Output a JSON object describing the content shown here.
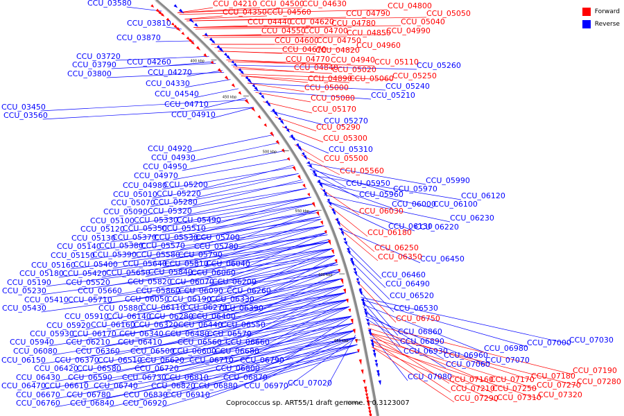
{
  "legend": {
    "forward_label": "Forward",
    "reverse_label": "Reverse",
    "forward_color": "#ff0000",
    "reverse_color": "#0000ff"
  },
  "caption": "Coprococcus sp. ART55/1 draft genome. - 0.3123007",
  "scale_ticks": [
    "400 kbp",
    "450 kbp",
    "500 kbp",
    "550 kbp",
    "600 kbp",
    "650 kbp",
    "700 kbp"
  ],
  "labels": {
    "reverse": [
      "CCU_03580",
      "CCU_03810",
      "CCU_03870",
      "CCU_03720",
      "CCU_03790",
      "CCU_03800",
      "CCU_04260",
      "CCU_04270",
      "CCU_04330",
      "CCU_04540",
      "CCU_04710",
      "CCU_03450",
      "CCU_03560",
      "CCU_04910",
      "CCU_04920",
      "CCU_04930",
      "CCU_04950",
      "CCU_04970",
      "CCU_04980",
      "CCU_05200",
      "CCU_05010",
      "CCU_05220",
      "CCU_05070",
      "CCU_05280",
      "CCU_05090",
      "CCU_05320",
      "CCU_05100",
      "CCU_05330",
      "CCU_05490",
      "CCU_05120",
      "CCU_05350",
      "CCU_05510",
      "CCU_05130",
      "CCU_05370",
      "CCU_05530",
      "CCU_05700",
      "CCU_05140",
      "CCU_05380",
      "CCU_05570",
      "CCU_05780",
      "CCU_05150",
      "CCU_05390",
      "CCU_05580",
      "CCU_05790",
      "CCU_05160",
      "CCU_05400",
      "CCU_05640",
      "CCU_05810",
      "CCU_06040",
      "CCU_05180",
      "CCU_05420",
      "CCU_05650",
      "CCU_05840",
      "CCU_06060",
      "CCU_05190",
      "CCU_05520",
      "CCU_05820",
      "CCU_06070",
      "CCU_06200",
      "CCU_05230",
      "CCU_05660",
      "CCU_05860",
      "CCU_06090",
      "CCU_06260",
      "CCU_05410",
      "CCU_05710",
      "CCU_06050",
      "CCU_06190",
      "CCU_06330",
      "CCU_05430",
      "CCU_05880",
      "CCU_06110",
      "CCU_06270",
      "CCU_06390",
      "CCU_05910",
      "CCU_06140",
      "CCU_06280",
      "CCU_06400",
      "CCU_05920",
      "CCU_06160",
      "CCU_06320",
      "CCU_06440",
      "CCU_06550",
      "CCU_05930",
      "CCU_06170",
      "CCU_06340",
      "CCU_06480",
      "CCU_06570",
      "CCU_05940",
      "CCU_06210",
      "CCU_06410",
      "CCU_06560",
      "CCU_06660",
      "CCU_06080",
      "CCU_06360",
      "CCU_06500",
      "CCU_06600",
      "CCU_06680",
      "CCU_06150",
      "CCU_06370",
      "CCU_06510",
      "CCU_06620",
      "CCU_06710",
      "CCU_06790",
      "CCU_06420",
      "CCU_06580",
      "CCU_06720",
      "CCU_06800",
      "CCU_06430",
      "CCU_06590",
      "CCU_06730",
      "CCU_06810",
      "CCU_06870",
      "CCU_06470",
      "CCU_06610",
      "CCU_06740",
      "CCU_06820",
      "CCU_06880",
      "CCU_06970",
      "CCU_07020",
      "CCU_06670",
      "CCU_06780",
      "CCU_06830",
      "CCU_06910",
      "CCU_06760",
      "CCU_06840",
      "CCU_06920",
      "CCU_05260",
      "CCU_05240",
      "CCU_05210",
      "CCU_05270",
      "CCU_05310",
      "CCU_05950",
      "CCU_05990",
      "CCU_05960",
      "CCU_05970",
      "CCU_06120",
      "CCU_06000",
      "CCU_06100",
      "CCU_06230",
      "CCU_06130",
      "CCU_06220",
      "CCU_06350",
      "CCU_06450",
      "CCU_06460",
      "CCU_06490",
      "CCU_06520",
      "CCU_06530",
      "CCU_06860",
      "CCU_06890",
      "CCU_06930",
      "CCU_06960",
      "CCU_06980",
      "CCU_07000",
      "CCU_07030",
      "CCU_07060",
      "CCU_07070",
      "CCU_07080"
    ],
    "forward": [
      "CCU_04210",
      "CCU_04500",
      "CCU_04630",
      "CCU_04800",
      "CCU_04350",
      "CCU_04560",
      "CCU_04790",
      "CCU_05050",
      "CCU_04440",
      "CCU_04620",
      "CCU_04780",
      "CCU_05040",
      "CCU_04550",
      "CCU_04700",
      "CCU_04850",
      "CCU_04990",
      "CCU_04600",
      "CCU_04750",
      "CCU_04960",
      "CCU_04670",
      "CCU_04820",
      "CCU_04770",
      "CCU_04940",
      "CCU_05110",
      "CCU_04840",
      "CCU_05020",
      "CCU_04890",
      "CCU_05060",
      "CCU_05250",
      "CCU_05000",
      "CCU_05080",
      "CCU_05170",
      "CCU_05290",
      "CCU_05300",
      "CCU_05500",
      "CCU_05560",
      "CCU_06030",
      "CCU_06180",
      "CCU_06250",
      "CCU_06750",
      "CCU_07160",
      "CCU_07170",
      "CCU_07180",
      "CCU_07190",
      "CCU_07210",
      "CCU_07250",
      "CCU_07270",
      "CCU_07280",
      "CCU_07290",
      "CCU_07310",
      "CCU_07320"
    ]
  }
}
